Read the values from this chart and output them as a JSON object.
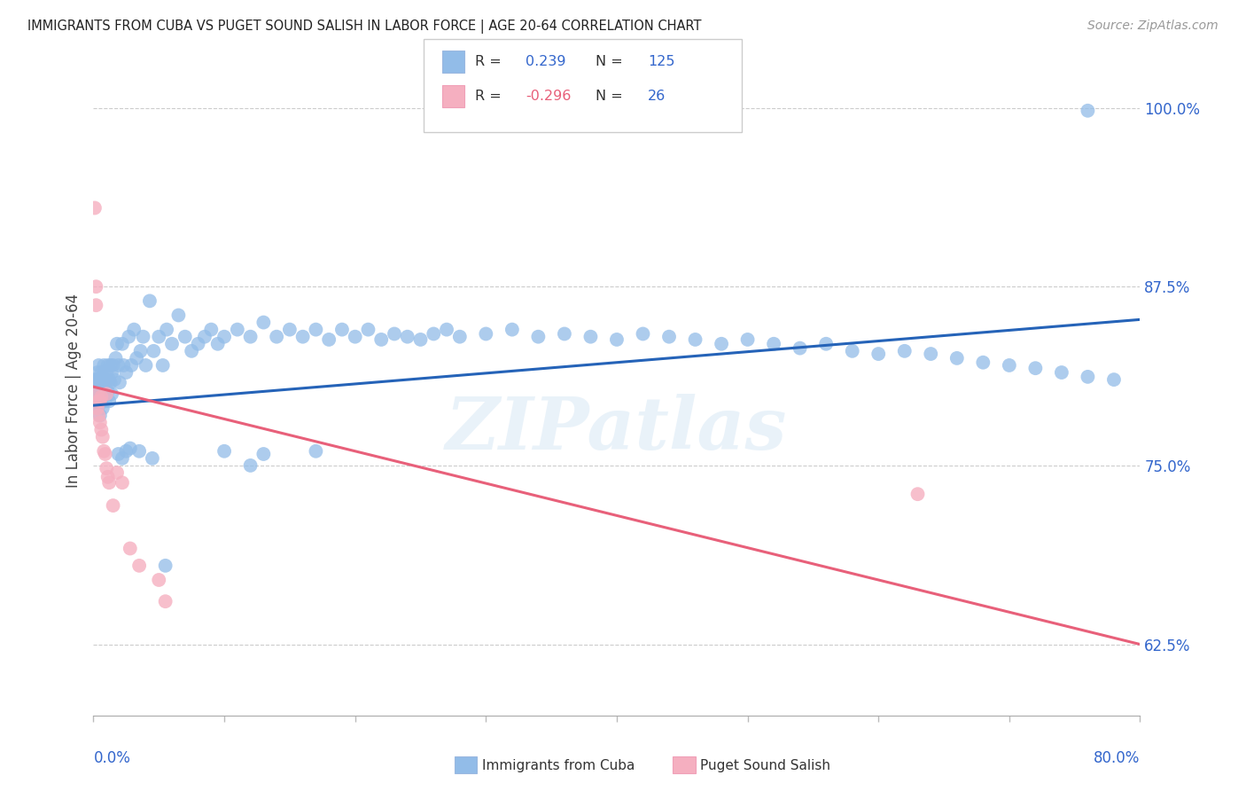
{
  "title": "IMMIGRANTS FROM CUBA VS PUGET SOUND SALISH IN LABOR FORCE | AGE 20-64 CORRELATION CHART",
  "source": "Source: ZipAtlas.com",
  "ylabel": "In Labor Force | Age 20-64",
  "right_yticks": [
    0.625,
    0.75,
    0.875,
    1.0
  ],
  "right_yticklabels": [
    "62.5%",
    "75.0%",
    "87.5%",
    "100.0%"
  ],
  "xmin": 0.0,
  "xmax": 0.8,
  "ymin": 0.575,
  "ymax": 1.03,
  "blue_color": "#92bce8",
  "pink_color": "#f5afc0",
  "blue_line_color": "#2563b8",
  "pink_line_color": "#e8607a",
  "legend_label_blue": "Immigrants from Cuba",
  "legend_label_pink": "Puget Sound Salish",
  "watermark": "ZIPatlas",
  "blue_trend_x": [
    0.0,
    0.8
  ],
  "blue_trend_y": [
    0.792,
    0.852
  ],
  "pink_trend_x": [
    0.0,
    0.8
  ],
  "pink_trend_y": [
    0.805,
    0.625
  ],
  "blue_points_x": [
    0.001,
    0.001,
    0.001,
    0.002,
    0.002,
    0.002,
    0.002,
    0.003,
    0.003,
    0.003,
    0.003,
    0.003,
    0.004,
    0.004,
    0.004,
    0.004,
    0.005,
    0.005,
    0.005,
    0.005,
    0.006,
    0.006,
    0.006,
    0.007,
    0.007,
    0.007,
    0.008,
    0.008,
    0.008,
    0.009,
    0.009,
    0.01,
    0.01,
    0.011,
    0.011,
    0.012,
    0.012,
    0.013,
    0.013,
    0.014,
    0.014,
    0.015,
    0.016,
    0.017,
    0.018,
    0.019,
    0.02,
    0.022,
    0.023,
    0.025,
    0.027,
    0.029,
    0.031,
    0.033,
    0.036,
    0.038,
    0.04,
    0.043,
    0.046,
    0.05,
    0.053,
    0.056,
    0.06,
    0.065,
    0.07,
    0.075,
    0.08,
    0.085,
    0.09,
    0.095,
    0.1,
    0.11,
    0.12,
    0.13,
    0.14,
    0.15,
    0.16,
    0.17,
    0.18,
    0.19,
    0.2,
    0.21,
    0.22,
    0.23,
    0.24,
    0.25,
    0.26,
    0.27,
    0.28,
    0.3,
    0.32,
    0.34,
    0.36,
    0.38,
    0.4,
    0.42,
    0.44,
    0.46,
    0.48,
    0.5,
    0.52,
    0.54,
    0.56,
    0.58,
    0.6,
    0.62,
    0.64,
    0.66,
    0.68,
    0.7,
    0.72,
    0.74,
    0.76,
    0.78,
    0.76,
    0.055,
    0.12,
    0.025,
    0.035,
    0.019,
    0.022,
    0.028,
    0.045,
    0.1,
    0.13,
    0.17
  ],
  "blue_points_y": [
    0.8,
    0.81,
    0.795,
    0.798,
    0.805,
    0.792,
    0.808,
    0.795,
    0.802,
    0.81,
    0.79,
    0.815,
    0.8,
    0.808,
    0.792,
    0.82,
    0.8,
    0.81,
    0.795,
    0.785,
    0.808,
    0.795,
    0.815,
    0.802,
    0.812,
    0.79,
    0.8,
    0.81,
    0.82,
    0.795,
    0.808,
    0.8,
    0.815,
    0.802,
    0.82,
    0.81,
    0.795,
    0.82,
    0.808,
    0.815,
    0.8,
    0.82,
    0.81,
    0.825,
    0.835,
    0.82,
    0.808,
    0.835,
    0.82,
    0.815,
    0.84,
    0.82,
    0.845,
    0.825,
    0.83,
    0.84,
    0.82,
    0.865,
    0.83,
    0.84,
    0.82,
    0.845,
    0.835,
    0.855,
    0.84,
    0.83,
    0.835,
    0.84,
    0.845,
    0.835,
    0.84,
    0.845,
    0.84,
    0.85,
    0.84,
    0.845,
    0.84,
    0.845,
    0.838,
    0.845,
    0.84,
    0.845,
    0.838,
    0.842,
    0.84,
    0.838,
    0.842,
    0.845,
    0.84,
    0.842,
    0.845,
    0.84,
    0.842,
    0.84,
    0.838,
    0.842,
    0.84,
    0.838,
    0.835,
    0.838,
    0.835,
    0.832,
    0.835,
    0.83,
    0.828,
    0.83,
    0.828,
    0.825,
    0.822,
    0.82,
    0.818,
    0.815,
    0.812,
    0.81,
    0.998,
    0.68,
    0.75,
    0.76,
    0.76,
    0.758,
    0.755,
    0.762,
    0.755,
    0.76,
    0.758,
    0.76
  ],
  "pink_points_x": [
    0.001,
    0.002,
    0.002,
    0.003,
    0.003,
    0.004,
    0.004,
    0.005,
    0.005,
    0.006,
    0.006,
    0.007,
    0.008,
    0.009,
    0.01,
    0.011,
    0.012,
    0.015,
    0.018,
    0.022,
    0.028,
    0.035,
    0.05,
    0.055,
    0.63,
    0.01
  ],
  "pink_points_y": [
    0.93,
    0.875,
    0.862,
    0.8,
    0.79,
    0.795,
    0.785,
    0.795,
    0.78,
    0.798,
    0.775,
    0.77,
    0.76,
    0.758,
    0.748,
    0.742,
    0.738,
    0.722,
    0.745,
    0.738,
    0.692,
    0.68,
    0.67,
    0.655,
    0.73,
    0.8
  ]
}
